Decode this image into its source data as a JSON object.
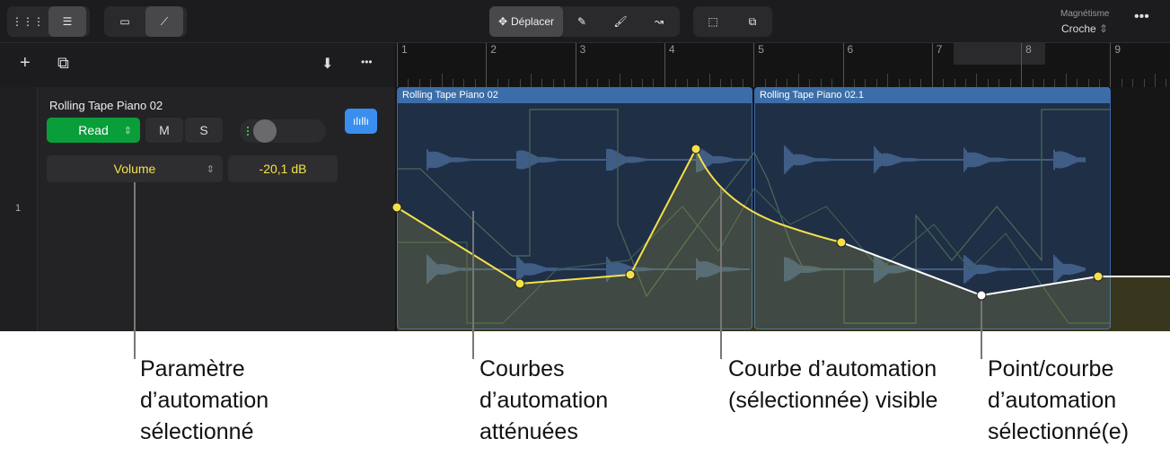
{
  "toolbar": {
    "move_label": "Déplacer",
    "snap_label": "Magnétisme",
    "snap_value": "Croche"
  },
  "track": {
    "number": "1",
    "name": "Rolling Tape Piano 02",
    "mode": "Read",
    "mute": "M",
    "solo": "S",
    "param": "Volume",
    "value": "-20,1 dB"
  },
  "ruler": {
    "bars": [
      "1",
      "2",
      "3",
      "4",
      "5",
      "6",
      "7",
      "8",
      "9"
    ]
  },
  "regions": [
    {
      "name": "Rolling Tape Piano 02"
    },
    {
      "name": "Rolling Tape Piano 02.1"
    }
  ],
  "colors": {
    "automation": "#f5e04a",
    "selected": "#ffffff",
    "region": "#3b6ea8",
    "read": "#0a9e3a",
    "accent": "#3a8ef0"
  },
  "callouts": [
    {
      "text1": "Paramètre",
      "text2": "d’automation",
      "text3": "sélectionné"
    },
    {
      "text1": "Courbes",
      "text2": "d’automation",
      "text3": "atténuées"
    },
    {
      "text1": "Courbe d’automation",
      "text2": "(sélectionnée) visible",
      "text3": ""
    },
    {
      "text1": "Point/courbe",
      "text2": "d’automation",
      "text3": "sélectionné(e)"
    }
  ]
}
